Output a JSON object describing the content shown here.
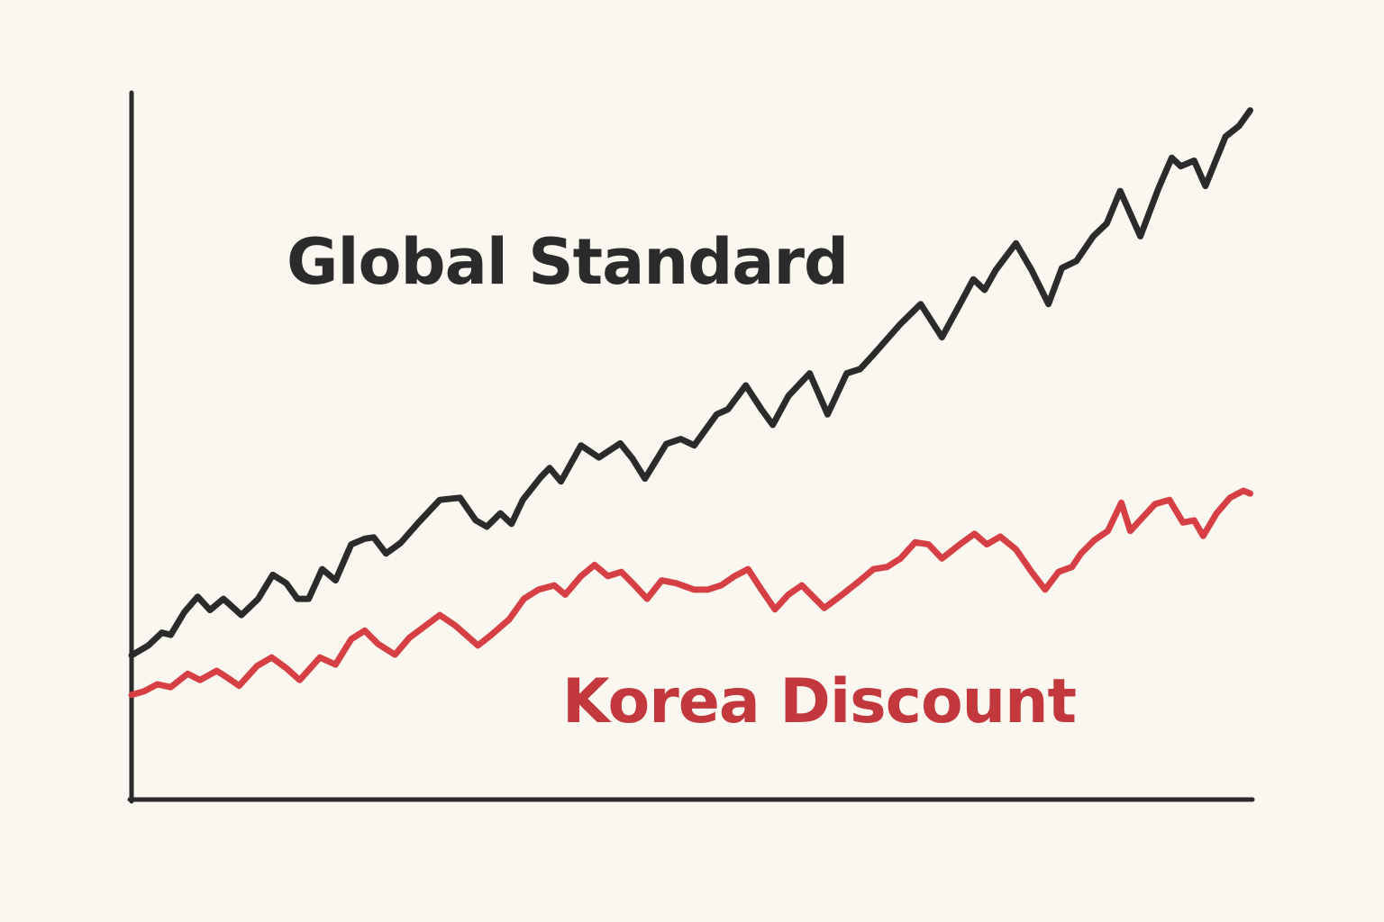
{
  "chart_data": {
    "type": "line",
    "title": "",
    "xlabel": "",
    "ylabel": "",
    "xlim": [
      0,
      100
    ],
    "ylim": [
      0,
      100
    ],
    "grid": false,
    "legend": "none",
    "series": [
      {
        "name": "Global Standard",
        "color": "#2b2b2b",
        "x": [
          0,
          1.5,
          2.7,
          3.5,
          4.7,
          5.9,
          7.0,
          8.2,
          9.8,
          11.3,
          12.6,
          13.8,
          14.8,
          15.8,
          17.0,
          18.2,
          19.6,
          20.8,
          21.6,
          22.7,
          24.0,
          25.6,
          27.5,
          29.3,
          30.7,
          31.7,
          32.9,
          33.9,
          34.9,
          36.5,
          37.3,
          38.3,
          40.1,
          41.7,
          43.6,
          44.7,
          45.8,
          47.7,
          49.0,
          50.2,
          52.2,
          53.2,
          54.8,
          56.2,
          57.2,
          58.6,
          60.5,
          62.1,
          63.8,
          65.0,
          66.1,
          68.6,
          70.4,
          72.3,
          73.6,
          75.1,
          76.1,
          77.1,
          78.9,
          80.3,
          81.8,
          83.0,
          84.3,
          85.8,
          87.0,
          88.2,
          90.0,
          91.6,
          92.8,
          93.6,
          94.8,
          95.8,
          97.6,
          98.8,
          99.8
        ],
        "y": [
          20.4,
          21.8,
          23.6,
          23.3,
          26.5,
          28.7,
          26.8,
          28.4,
          26.1,
          28.4,
          31.8,
          30.6,
          28.4,
          28.4,
          32.6,
          31.0,
          36.1,
          36.9,
          37.1,
          34.8,
          36.3,
          39.2,
          42.4,
          42.7,
          39.5,
          38.6,
          40.5,
          39.0,
          42.4,
          45.6,
          46.9,
          45.0,
          50.1,
          48.4,
          50.4,
          48.2,
          45.4,
          50.3,
          51.0,
          50.1,
          54.5,
          55.2,
          58.6,
          55.2,
          53.0,
          57.1,
          60.3,
          54.5,
          60.3,
          60.9,
          62.8,
          67.3,
          70.1,
          65.4,
          69.2,
          73.6,
          72.1,
          74.9,
          78.7,
          74.9,
          70.1,
          75.2,
          76.2,
          79.7,
          81.5,
          86.1,
          79.7,
          86.4,
          90.8,
          89.6,
          90.4,
          86.8,
          93.8,
          95.3,
          97.5
        ]
      },
      {
        "name": "Korea Discount",
        "color": "#d64045",
        "x": [
          0,
          1.1,
          2.3,
          3.5,
          5.0,
          6.1,
          7.6,
          8.5,
          9.6,
          11.2,
          12.5,
          13.8,
          15.0,
          16.8,
          18.2,
          19.6,
          20.8,
          22.0,
          23.5,
          24.8,
          25.9,
          27.5,
          28.9,
          30.9,
          32.1,
          33.7,
          35.0,
          36.3,
          37.7,
          38.7,
          40.1,
          41.3,
          42.5,
          43.7,
          44.7,
          46.0,
          47.3,
          48.6,
          50.2,
          51.4,
          52.6,
          53.8,
          55.0,
          56.2,
          57.4,
          58.6,
          59.8,
          61.0,
          61.8,
          63.4,
          65.0,
          66.2,
          67.4,
          68.6,
          69.9,
          71.1,
          72.3,
          73.9,
          75.2,
          76.3,
          77.5,
          78.9,
          80.3,
          81.5,
          82.7,
          83.9,
          84.7,
          85.9,
          87.1,
          88.3,
          89.1,
          90.2,
          91.3,
          92.6,
          93.8,
          94.8,
          95.6,
          96.8,
          98.0,
          99.2,
          99.8
        ],
        "y": [
          14.8,
          15.3,
          16.3,
          15.9,
          17.8,
          16.9,
          18.2,
          17.3,
          16.1,
          18.9,
          20.1,
          18.6,
          16.9,
          20.1,
          19.1,
          22.7,
          23.9,
          22.0,
          20.5,
          22.9,
          24.2,
          26.1,
          24.6,
          21.8,
          23.3,
          25.5,
          28.4,
          29.7,
          30.3,
          29.0,
          31.6,
          33.2,
          31.6,
          32.2,
          30.6,
          28.4,
          31.0,
          30.6,
          29.7,
          29.7,
          30.3,
          31.6,
          32.6,
          29.7,
          26.9,
          29.0,
          30.3,
          28.4,
          27.1,
          29.0,
          31.0,
          32.6,
          32.9,
          34.1,
          36.4,
          36.1,
          34.1,
          36.1,
          37.6,
          36.1,
          37.2,
          35.4,
          32.2,
          29.7,
          32.2,
          32.9,
          34.8,
          36.7,
          38.0,
          42.0,
          38.0,
          39.9,
          41.8,
          42.4,
          39.2,
          39.5,
          37.3,
          40.5,
          42.7,
          43.7,
          43.3
        ]
      }
    ],
    "annotations": [
      "Global Standard",
      "Korea Discount"
    ]
  },
  "colors": {
    "background": "#faf6f0",
    "axis": "#2b2b2b",
    "korea_label": "#c2383c"
  }
}
